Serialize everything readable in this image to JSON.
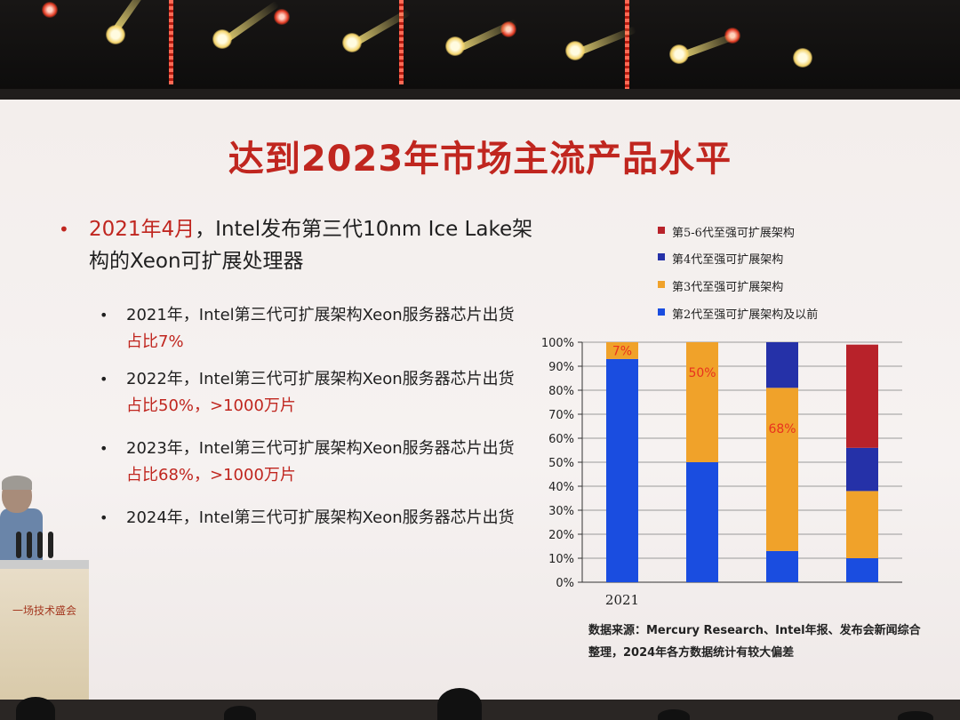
{
  "slide": {
    "title": "达到2023年市场主流产品水平",
    "main_bullet": {
      "date": "2021年4月",
      "text_line1": "，Intel发布第三代10nm Ice Lake架",
      "text_line2": "构的Xeon可扩展处理器"
    },
    "sub_bullets": [
      {
        "line1": "2021年，Intel第三代可扩展架构Xeon服务器芯片出货",
        "line2": "占比7%"
      },
      {
        "line1": "2022年，Intel第三代可扩展架构Xeon服务器芯片出货",
        "line2": "占比50%，>1000万片"
      },
      {
        "line1": "2023年，Intel第三代可扩展架构Xeon服务器芯片出货",
        "line2": "占比68%，>1000万片"
      },
      {
        "line1": "2024年，Intel第三代可扩展架构Xeon服务器芯片出货",
        "line2": ""
      }
    ],
    "source_line1": "数据来源：Mercury Research、Intel年报、发布会新闻综合",
    "source_line2": "整理，2024年各方数据统计有较大偏差",
    "podium_text": "一场技术盛会"
  },
  "chart_data": {
    "type": "bar",
    "stacked": true,
    "categories": [
      "2021",
      "",
      "",
      ""
    ],
    "y_ticks": [
      "0%",
      "10%",
      "20%",
      "30%",
      "40%",
      "50%",
      "60%",
      "70%",
      "80%",
      "90%",
      "100%"
    ],
    "ylim": [
      0,
      100
    ],
    "grid": true,
    "legend_placement": "top",
    "series": [
      {
        "name": "第2代至强可扩展架构及以前",
        "color": "#1a4de0",
        "values": [
          93,
          50,
          13,
          10
        ]
      },
      {
        "name": "第3代至强可扩展架构",
        "color": "#f0a22a",
        "values": [
          7,
          50,
          68,
          28
        ]
      },
      {
        "name": "第4代至强可扩展架构",
        "color": "#2531a8",
        "values": [
          0,
          0,
          19,
          18
        ]
      },
      {
        "name": "第5-6代至强可扩展架构",
        "color": "#b8222a",
        "values": [
          0,
          0,
          0,
          43
        ]
      }
    ],
    "data_labels": [
      "7%",
      "50%",
      "68%",
      ""
    ],
    "data_label_color": "#e8321e"
  }
}
